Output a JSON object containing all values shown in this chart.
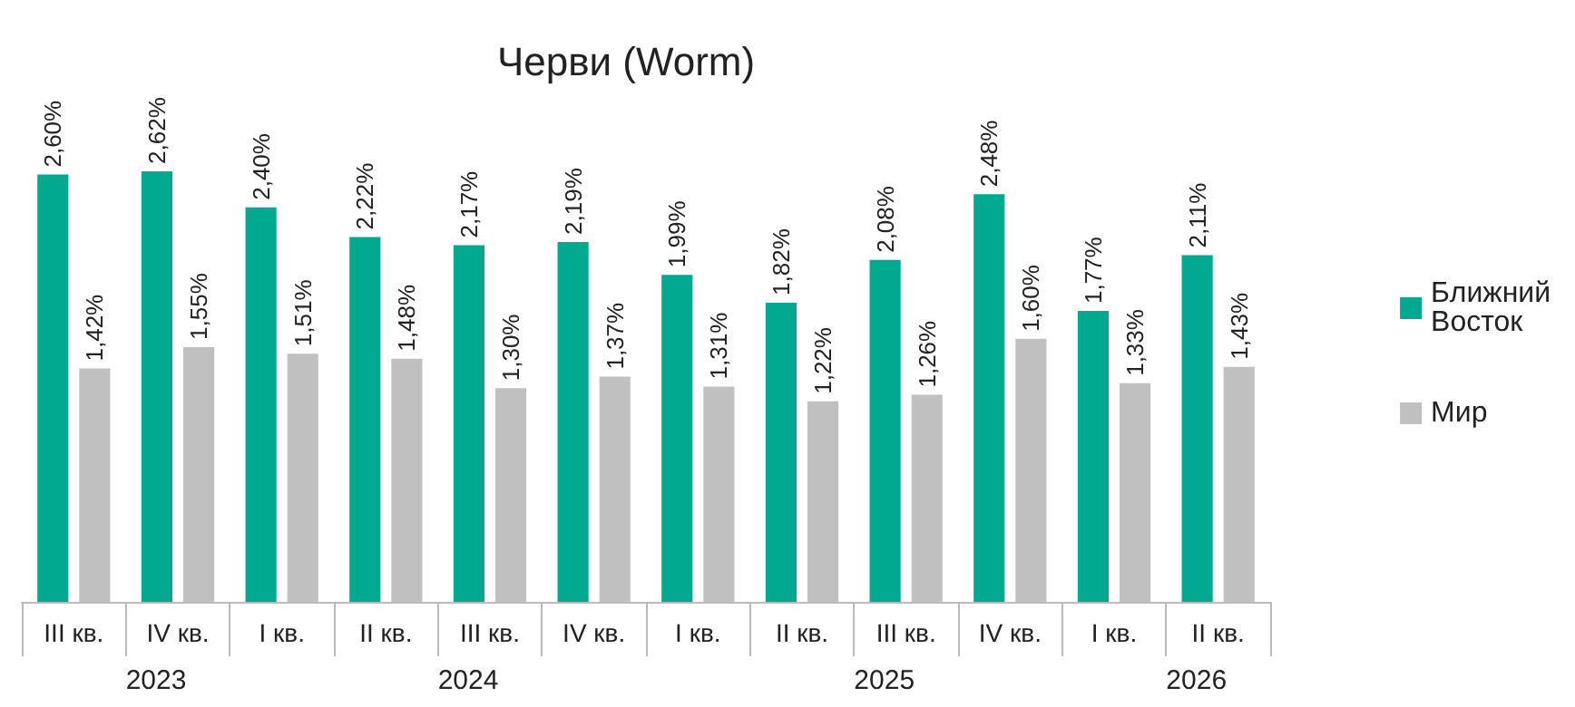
{
  "chart_data": {
    "type": "bar",
    "title": "Черви (Worm)",
    "categories": [
      "III кв.",
      "IV кв.",
      "I кв.",
      "II кв.",
      "III кв.",
      "IV кв.",
      "I кв.",
      "II кв.",
      "III кв.",
      "IV кв.",
      "I кв.",
      "II кв."
    ],
    "annotations": [
      "2023",
      "2024",
      "2025",
      "2026"
    ],
    "series": [
      {
        "name": "Ближний Восток",
        "color": "#00a98f",
        "values": [
          2.6,
          2.62,
          2.4,
          2.22,
          2.17,
          2.19,
          1.99,
          1.82,
          2.08,
          2.48,
          1.77,
          2.11
        ],
        "value_labels": [
          "2,60%",
          "2,62%",
          "2,40%",
          "2,22%",
          "2,17%",
          "2,19%",
          "1,99%",
          "1,82%",
          "2,08%",
          "2,48%",
          "1,77%",
          "2,11%"
        ]
      },
      {
        "name": "Мир",
        "color": "#c0c0c0",
        "values": [
          1.42,
          1.55,
          1.51,
          1.48,
          1.3,
          1.37,
          1.31,
          1.22,
          1.26,
          1.6,
          1.33,
          1.43
        ],
        "value_labels": [
          "1,42%",
          "1,55%",
          "1,51%",
          "1,48%",
          "1,30%",
          "1,37%",
          "1,31%",
          "1,22%",
          "1,26%",
          "1,60%",
          "1,33%",
          "1,43%"
        ]
      }
    ],
    "legend": "right"
  }
}
